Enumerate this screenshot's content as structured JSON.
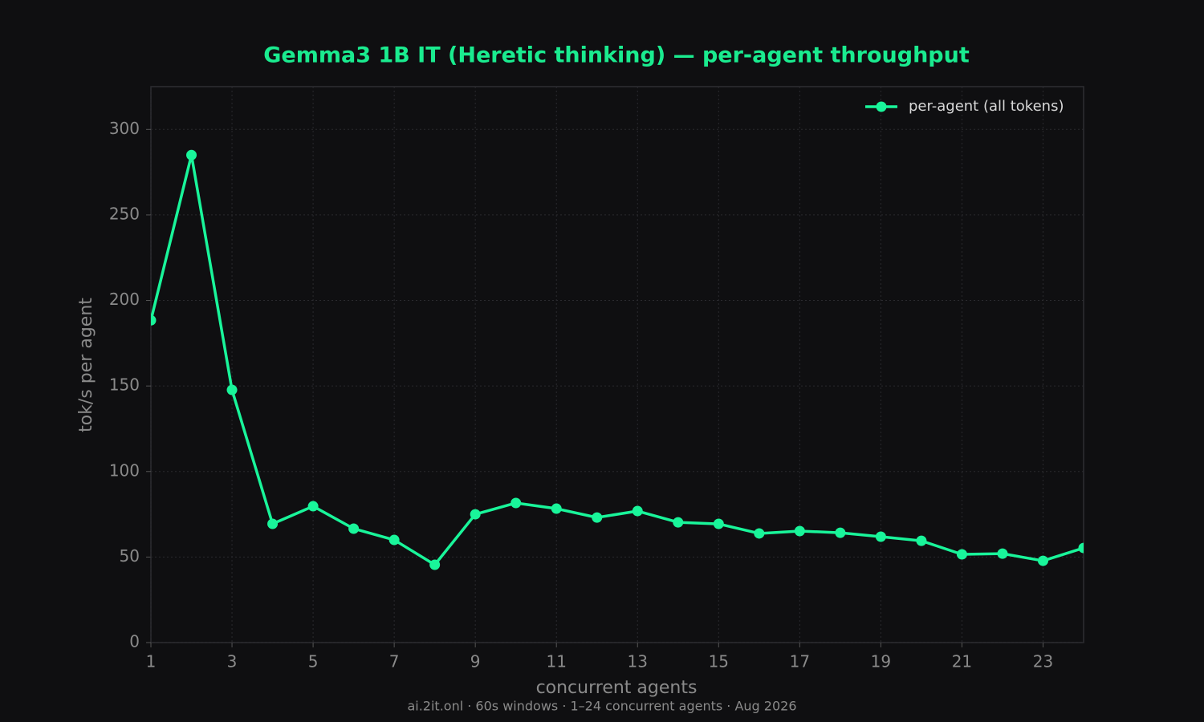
{
  "chart_data": {
    "type": "line",
    "title": "Gemma3 1B IT (Heretic thinking) — per-agent throughput",
    "x_label": "concurrent agents",
    "y_label": "tok/s per agent",
    "footer": "ai.2it.onl · 60s windows · 1–24 concurrent agents · Aug 2026",
    "x": [
      1,
      2,
      3,
      4,
      5,
      6,
      7,
      8,
      9,
      10,
      11,
      12,
      13,
      14,
      15,
      16,
      17,
      18,
      19,
      20,
      21,
      22,
      23,
      24
    ],
    "series": [
      {
        "name": "per-agent (all tokens)",
        "color": "#19f59a",
        "values": [
          188.4,
          285,
          147.7,
          69.4,
          79.7,
          66.6,
          60,
          45.5,
          75,
          81.6,
          78.3,
          73.1,
          76.9,
          70.3,
          69.4,
          63.8,
          65.2,
          64.2,
          61.9,
          59.5,
          51.6,
          52,
          47.8,
          55.3
        ]
      }
    ],
    "xlim": [
      1,
      24
    ],
    "ylim": [
      0,
      325
    ],
    "xticks": [
      1,
      3,
      5,
      7,
      9,
      11,
      13,
      15,
      17,
      19,
      21,
      23
    ],
    "yticks": [
      0,
      50,
      100,
      150,
      200,
      250,
      300
    ],
    "grid": true,
    "legend": "upper right"
  }
}
